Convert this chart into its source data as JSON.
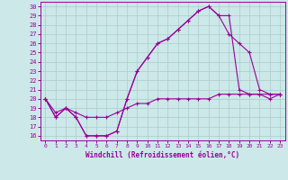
{
  "xlabel": "Windchill (Refroidissement éolien,°C)",
  "bg_color": "#cce8e8",
  "line_color": "#990099",
  "grid_color": "#aacccc",
  "xlim": [
    -0.5,
    23.5
  ],
  "ylim": [
    15.5,
    30.5
  ],
  "xticks": [
    0,
    1,
    2,
    3,
    4,
    5,
    6,
    7,
    8,
    9,
    10,
    11,
    12,
    13,
    14,
    15,
    16,
    17,
    18,
    19,
    20,
    21,
    22,
    23
  ],
  "yticks": [
    16,
    17,
    18,
    19,
    20,
    21,
    22,
    23,
    24,
    25,
    26,
    27,
    28,
    29,
    30
  ],
  "line1_x": [
    0,
    1,
    2,
    3,
    4,
    5,
    6,
    7,
    8,
    9,
    10,
    11,
    12,
    13,
    14,
    15,
    16,
    17,
    18,
    19,
    20,
    21,
    22,
    23
  ],
  "line1_y": [
    20,
    18,
    19,
    18,
    16,
    16,
    16,
    16.5,
    20,
    23,
    24.5,
    26,
    26.5,
    27.5,
    28.5,
    29.5,
    30,
    29,
    27,
    26,
    25,
    21,
    20.5,
    20.5
  ],
  "line2_x": [
    0,
    1,
    2,
    3,
    4,
    5,
    6,
    7,
    8,
    9,
    10,
    11,
    12,
    13,
    14,
    15,
    16,
    17,
    18,
    19,
    20,
    21,
    22,
    23
  ],
  "line2_y": [
    20,
    18,
    19,
    18,
    16,
    16,
    16,
    16.5,
    20,
    23,
    24.5,
    26,
    26.5,
    27.5,
    28.5,
    29.5,
    30,
    29,
    29,
    21,
    20.5,
    20.5,
    20,
    20.5
  ],
  "line3_x": [
    0,
    1,
    2,
    3,
    4,
    5,
    6,
    7,
    8,
    9,
    10,
    11,
    12,
    13,
    14,
    15,
    16,
    17,
    18,
    19,
    20,
    21,
    22,
    23
  ],
  "line3_y": [
    20,
    18.5,
    19,
    18.5,
    18,
    18,
    18,
    18.5,
    19,
    19.5,
    19.5,
    20,
    20,
    20,
    20,
    20,
    20,
    20.5,
    20.5,
    20.5,
    20.5,
    20.5,
    20.5,
    20.5
  ]
}
